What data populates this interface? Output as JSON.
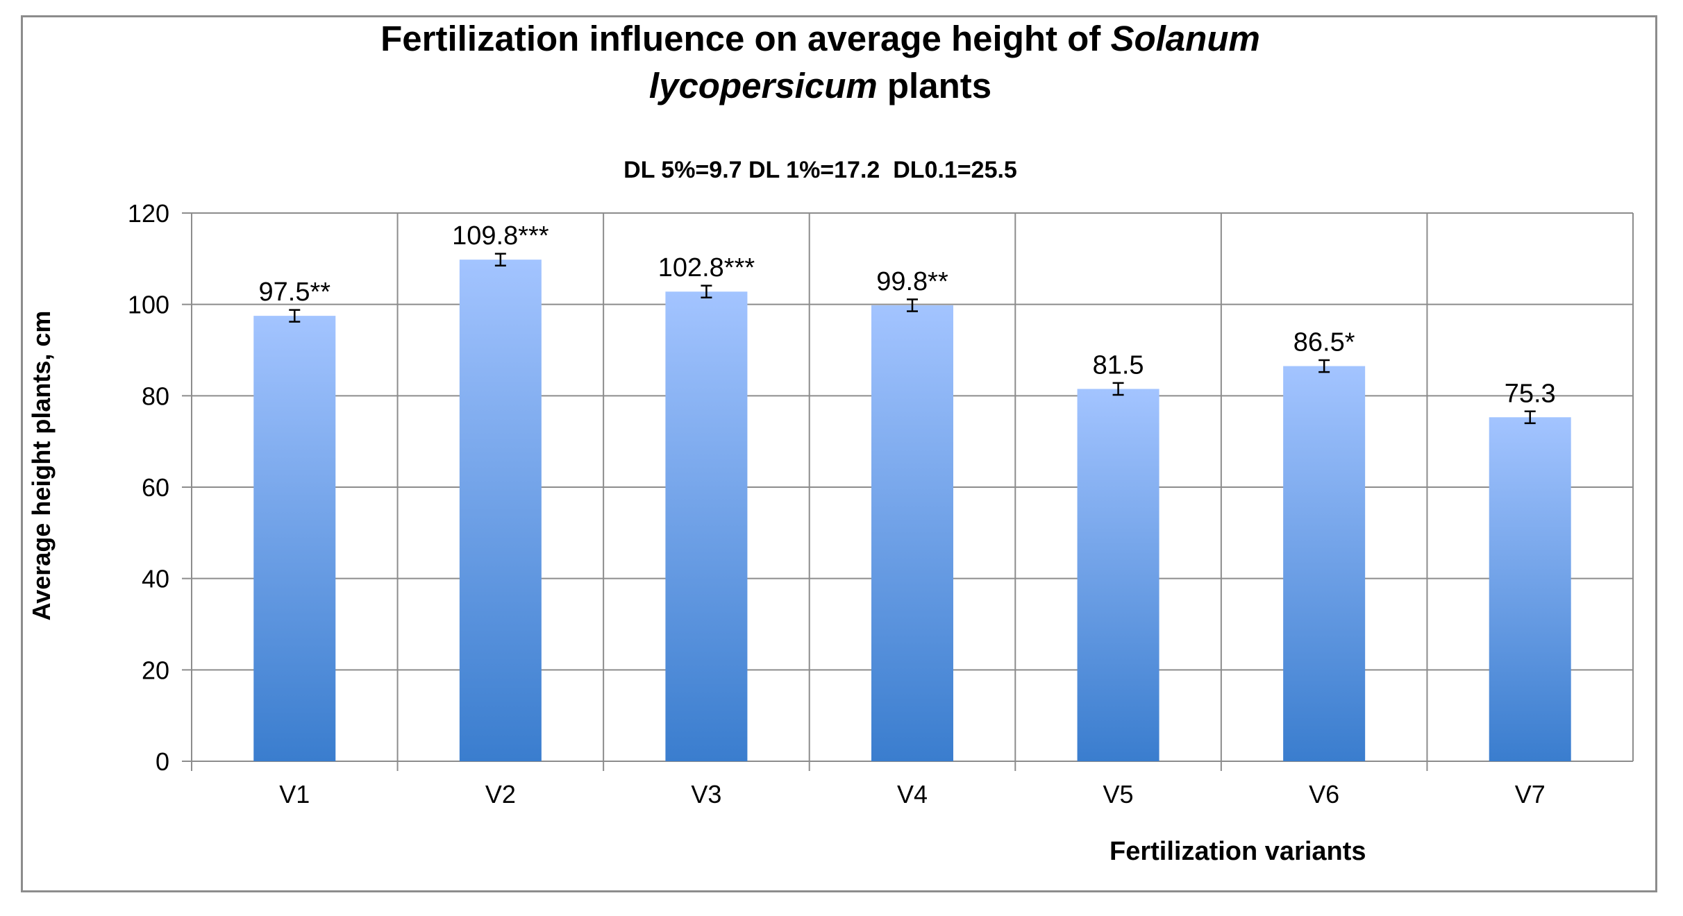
{
  "chart_data": {
    "type": "bar",
    "title_parts": {
      "line1_pre": "Fertilization influence on average height of ",
      "line1_italic": "Solanum",
      "line2_italic": "lycopersicum",
      "line2_post": " plants"
    },
    "subtitle": "DL 5%=9.7 DL 1%=17.2  DL0.1=25.5",
    "xlabel": "Fertilization variants",
    "ylabel": "Average height plants, cm",
    "categories": [
      "V1",
      "V2",
      "V3",
      "V4",
      "V5",
      "V6",
      "V7"
    ],
    "values": [
      97.5,
      109.8,
      102.8,
      99.8,
      81.5,
      86.5,
      75.3
    ],
    "error": 1.3,
    "data_labels": [
      "97.5**",
      "109.8***",
      "102.8***",
      "99.8**",
      "81.5",
      "86.5*",
      "75.3"
    ],
    "ylim": [
      0,
      120
    ],
    "yticks": [
      0,
      20,
      40,
      60,
      80,
      100,
      120
    ],
    "grid": true,
    "legend": "none",
    "colors": {
      "bar_top": "#a3c4ff",
      "bar_bottom": "#3a7dce",
      "grid": "#8c8c8c"
    }
  }
}
